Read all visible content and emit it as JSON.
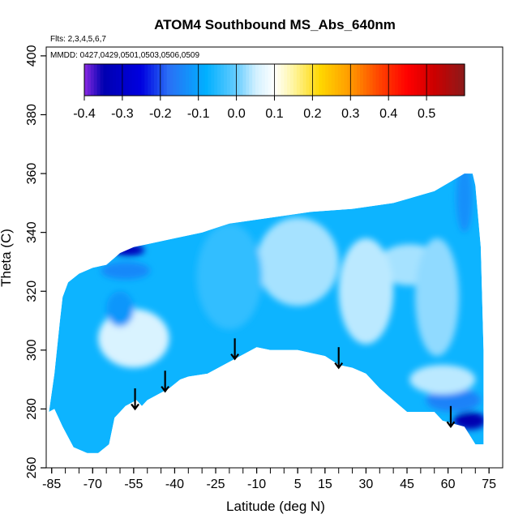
{
  "chart_data": {
    "type": "heatmap",
    "title": "ATOM4 Southbound MS_Abs_640nm",
    "annotations": [
      "Flts: 2,3,4,5,6,7",
      "MMDD: 0427,0429,0501,0503,0506,0509"
    ],
    "xlabel": "Latitude (deg N)",
    "ylabel": "Theta (C)",
    "xlim": [
      -87,
      80
    ],
    "ylim": [
      260,
      403
    ],
    "x_ticks": [
      -85,
      -70,
      -55,
      -40,
      -25,
      -10,
      5,
      15,
      30,
      45,
      60,
      75
    ],
    "x_tick_labels": [
      "-85",
      "-70",
      "-55",
      "-40",
      "-25",
      "-10",
      "5",
      "15",
      "30",
      "45",
      "60",
      "75"
    ],
    "x_minor_step": 5,
    "y_ticks": [
      260,
      280,
      300,
      320,
      340,
      360,
      380,
      400
    ],
    "y_tick_labels": [
      "260",
      "280",
      "300",
      "320",
      "340",
      "360",
      "380",
      "400"
    ],
    "colorbar": {
      "ticks": [
        -0.4,
        -0.3,
        -0.2,
        -0.1,
        0.0,
        0.1,
        0.2,
        0.3,
        0.4,
        0.5
      ],
      "tick_labels": [
        "-0.4",
        "-0.3",
        "-0.2",
        "-0.1",
        "0.0",
        "0.1",
        "0.2",
        "0.3",
        "0.4",
        "0.5"
      ],
      "range": [
        -0.4,
        0.6
      ],
      "stops": [
        {
          "v": -0.4,
          "c": "#8a2be2"
        },
        {
          "v": -0.35,
          "c": "#0000b0"
        },
        {
          "v": -0.25,
          "c": "#0000e0"
        },
        {
          "v": -0.18,
          "c": "#2a6ef5"
        },
        {
          "v": -0.08,
          "c": "#00b0ff"
        },
        {
          "v": 0.0,
          "c": "#66ccff"
        },
        {
          "v": 0.05,
          "c": "#d0f0ff"
        },
        {
          "v": 0.1,
          "c": "#ffffff"
        },
        {
          "v": 0.15,
          "c": "#fff5a0"
        },
        {
          "v": 0.22,
          "c": "#ffd700"
        },
        {
          "v": 0.3,
          "c": "#ff9900"
        },
        {
          "v": 0.38,
          "c": "#ff4000"
        },
        {
          "v": 0.45,
          "c": "#ff0000"
        },
        {
          "v": 0.52,
          "c": "#cc0000"
        },
        {
          "v": 0.6,
          "c": "#8b1a1a"
        }
      ]
    },
    "region_top_boundary": [
      [
        -86,
        279
      ],
      [
        -84,
        292
      ],
      [
        -82,
        310
      ],
      [
        -81,
        318
      ],
      [
        -79,
        323
      ],
      [
        -75,
        326
      ],
      [
        -70,
        328
      ],
      [
        -65,
        329
      ],
      [
        -60,
        333
      ],
      [
        -55,
        335
      ],
      [
        -45,
        337
      ],
      [
        -40,
        338
      ],
      [
        -30,
        340
      ],
      [
        -20,
        343
      ],
      [
        -5,
        345
      ],
      [
        10,
        347
      ],
      [
        25,
        348
      ],
      [
        40,
        350
      ],
      [
        55,
        354
      ],
      [
        66,
        360
      ],
      [
        69,
        360
      ],
      [
        70,
        356
      ],
      [
        72,
        335
      ],
      [
        73,
        300
      ],
      [
        73,
        268
      ]
    ],
    "region_bottom_boundary": [
      [
        -86,
        279
      ],
      [
        -84,
        280
      ],
      [
        -81,
        274
      ],
      [
        -77,
        267
      ],
      [
        -72,
        265
      ],
      [
        -68,
        265
      ],
      [
        -64,
        268
      ],
      [
        -62,
        277
      ],
      [
        -58,
        281
      ],
      [
        -56,
        282
      ],
      [
        -54,
        283
      ],
      [
        -52,
        281
      ],
      [
        -50,
        283
      ],
      [
        -46,
        285
      ],
      [
        -42,
        287
      ],
      [
        -38,
        290
      ],
      [
        -35,
        291
      ],
      [
        -28,
        292
      ],
      [
        -22,
        295
      ],
      [
        -16,
        298
      ],
      [
        -10,
        301
      ],
      [
        -5,
        300
      ],
      [
        0,
        300
      ],
      [
        5,
        300
      ],
      [
        10,
        299
      ],
      [
        15,
        298
      ],
      [
        20,
        295
      ],
      [
        25,
        294
      ],
      [
        30,
        292
      ],
      [
        35,
        287
      ],
      [
        40,
        283
      ],
      [
        45,
        279
      ],
      [
        50,
        279
      ],
      [
        55,
        279
      ],
      [
        58,
        276
      ],
      [
        62,
        275
      ],
      [
        66,
        274
      ],
      [
        70,
        268
      ],
      [
        73,
        268
      ]
    ],
    "field_features": [
      {
        "lat": -55,
        "theta": 304,
        "value": 0.18,
        "rx": 7,
        "ry": 6
      },
      {
        "lat": -55,
        "theta": 304,
        "value": 0.06,
        "rx": 13,
        "ry": 10
      },
      {
        "lat": 46,
        "theta": 329,
        "value": 0.14,
        "rx": 6,
        "ry": 4
      },
      {
        "lat": 46,
        "theta": 329,
        "value": 0.03,
        "rx": 12,
        "ry": 7
      },
      {
        "lat": -57,
        "theta": 334,
        "value": -0.33,
        "rx": 6,
        "ry": 2
      },
      {
        "lat": -58,
        "theta": 327,
        "value": -0.14,
        "rx": 9,
        "ry": 3
      },
      {
        "lat": -60,
        "theta": 314,
        "value": -0.12,
        "rx": 5,
        "ry": 6
      },
      {
        "lat": 68,
        "theta": 276,
        "value": -0.35,
        "rx": 6,
        "ry": 3
      },
      {
        "lat": 62,
        "theta": 283,
        "value": -0.15,
        "rx": 10,
        "ry": 4
      },
      {
        "lat": 58,
        "theta": 290,
        "value": 0.04,
        "rx": 12,
        "ry": 5
      },
      {
        "lat": 66,
        "theta": 352,
        "value": -0.13,
        "rx": 3,
        "ry": 12
      },
      {
        "lat": 5,
        "theta": 330,
        "value": 0.03,
        "rx": 15,
        "ry": 15
      },
      {
        "lat": 30,
        "theta": 320,
        "value": 0.04,
        "rx": 10,
        "ry": 18
      },
      {
        "lat": -20,
        "theta": 325,
        "value": -0.04,
        "rx": 12,
        "ry": 18
      },
      {
        "lat": 56,
        "theta": 318,
        "value": 0.02,
        "rx": 8,
        "ry": 20
      }
    ],
    "flight_markers": [
      {
        "lat": -54.5,
        "theta_top": 287,
        "theta_bottom": 280
      },
      {
        "lat": -43.5,
        "theta_top": 293,
        "theta_bottom": 286
      },
      {
        "lat": -18,
        "theta_top": 304,
        "theta_bottom": 297
      },
      {
        "lat": 20,
        "theta_top": 301,
        "theta_bottom": 294
      },
      {
        "lat": 61,
        "theta_top": 281,
        "theta_bottom": 274
      }
    ]
  }
}
